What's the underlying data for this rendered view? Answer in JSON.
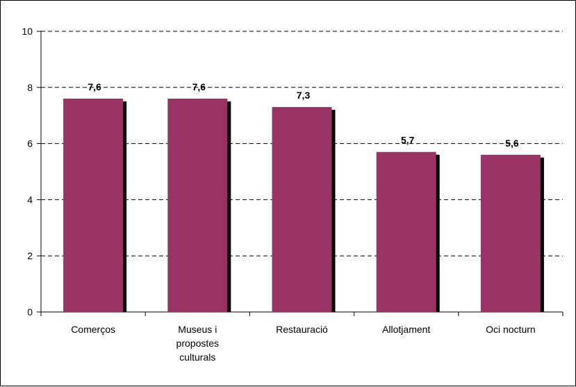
{
  "chart_data": {
    "type": "bar",
    "categories": [
      [
        "Comerços"
      ],
      [
        "Museus i",
        "propostes",
        "culturals"
      ],
      [
        "Restauració"
      ],
      [
        "Allotjament"
      ],
      [
        "Oci nocturn"
      ]
    ],
    "values": [
      7.6,
      7.6,
      7.3,
      5.7,
      5.6
    ],
    "data_labels": [
      "7,6",
      "7,6",
      "7,3",
      "5,7",
      "5,6"
    ],
    "y_ticks": [
      0,
      2,
      4,
      6,
      8,
      10
    ],
    "y_tick_labels": [
      "0",
      "2",
      "4",
      "6",
      "8",
      "10"
    ],
    "ylim": [
      0,
      10
    ],
    "grid": "dashed horizontal",
    "legend": "none",
    "colors": {
      "bar": "#993366",
      "bar_shadow": "#000000",
      "grid": "#000000"
    }
  }
}
